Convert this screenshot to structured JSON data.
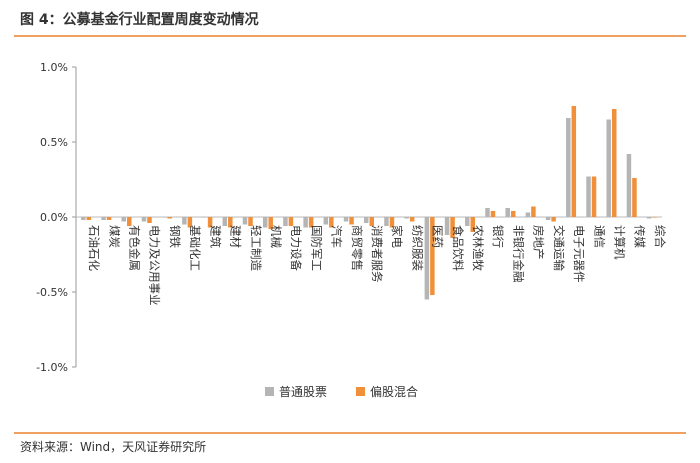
{
  "header": {
    "title": "图 4：公募基金行业配置周度变动情况"
  },
  "footer": {
    "source": "资料来源：Wind，天风证券研究所"
  },
  "colors": {
    "series1": "#b5b5b5",
    "series2": "#f0903a",
    "accent_rule": "#f0a060"
  },
  "chart_data": {
    "type": "bar",
    "title": "",
    "xlabel": "",
    "ylabel": "",
    "ylim": [
      -1.0,
      1.0
    ],
    "yticks": [
      "1.0%",
      "0.5%",
      "0.0%",
      "-0.5%",
      "-1.0%"
    ],
    "yticks_values": [
      1.0,
      0.5,
      0.0,
      -0.5,
      -1.0
    ],
    "grid": false,
    "legend_position": "bottom",
    "categories": [
      "石油石化",
      "煤炭",
      "有色金属",
      "电力及公用事业",
      "钢铁",
      "基础化工",
      "建筑",
      "建材",
      "轻工制造",
      "机械",
      "电力设备",
      "国防军工",
      "汽车",
      "商贸零售",
      "消费者服务",
      "家电",
      "纺织服装",
      "医药",
      "食品饮料",
      "农林渔牧",
      "银行",
      "非银行金融",
      "房地产",
      "交通运输",
      "电子元器件",
      "通信",
      "计算机",
      "传媒",
      "综合"
    ],
    "series": [
      {
        "name": "普通股票",
        "values": [
          -0.02,
          -0.02,
          -0.03,
          -0.03,
          0.0,
          -0.05,
          0.0,
          -0.06,
          -0.05,
          -0.07,
          -0.06,
          -0.07,
          -0.05,
          -0.03,
          -0.04,
          -0.06,
          -0.01,
          -0.55,
          -0.12,
          -0.06,
          0.06,
          0.06,
          0.03,
          -0.02,
          0.66,
          0.27,
          0.65,
          0.42,
          -0.01
        ]
      },
      {
        "name": "偏股混合",
        "values": [
          -0.02,
          -0.02,
          -0.06,
          -0.04,
          -0.01,
          -0.07,
          -0.07,
          -0.07,
          -0.06,
          -0.08,
          -0.06,
          -0.07,
          -0.07,
          -0.05,
          -0.06,
          -0.07,
          -0.03,
          -0.52,
          -0.14,
          -0.1,
          0.04,
          0.04,
          0.07,
          -0.03,
          0.74,
          0.27,
          0.72,
          0.26,
          0.0
        ]
      }
    ]
  }
}
